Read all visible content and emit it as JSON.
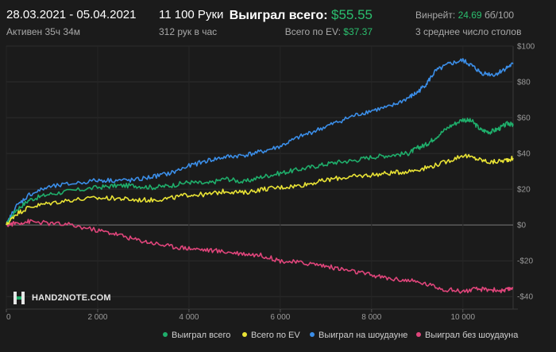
{
  "header": {
    "date_range": "28.03.2021 - 05.04.2021",
    "active": "Активен 35ч 34м",
    "hands": "11 100 Руки",
    "hands_per_hour": "312 рук в час",
    "won_label": "Выиграл всего:",
    "won_value": "$55.55",
    "ev_label": "Всего по EV:",
    "ev_value": "$37.37",
    "winrate_label": "Винрейт:",
    "winrate_value": "24.69",
    "winrate_unit": "бб/100",
    "tables": "3 среднее число столов"
  },
  "logo": {
    "text": "HAND2NOTE.COM"
  },
  "colors": {
    "background": "#1b1b1b",
    "won_total": "#1fae6b",
    "ev_total": "#e9e335",
    "showdown": "#3b8ee8",
    "non_showdown": "#e0457b",
    "accent": "#2bbf6e"
  },
  "chart_data": {
    "type": "line",
    "xlim": [
      0,
      11100
    ],
    "ylim": [
      -47,
      100
    ],
    "x_ticks": [
      0,
      2000,
      4000,
      6000,
      8000,
      10000
    ],
    "x_tick_labels": [
      "0",
      "2 000",
      "4 000",
      "6 000",
      "8 000",
      "10 000"
    ],
    "y_ticks": [
      100,
      80,
      60,
      40,
      20,
      0,
      -20,
      -40
    ],
    "y_tick_labels": [
      "$100",
      "$80",
      "$60",
      "$40",
      "$20",
      "$0",
      "-$20",
      "-$40"
    ],
    "grid": true,
    "legend_position": "bottom-right",
    "series": [
      {
        "name": "Выиграл всего",
        "color": "#1fae6b",
        "points": [
          [
            0,
            0
          ],
          [
            200,
            8
          ],
          [
            500,
            14
          ],
          [
            900,
            17
          ],
          [
            1400,
            19
          ],
          [
            2000,
            21
          ],
          [
            2400,
            22
          ],
          [
            2800,
            22
          ],
          [
            3200,
            21
          ],
          [
            3600,
            22
          ],
          [
            4000,
            24
          ],
          [
            4400,
            23
          ],
          [
            4800,
            26
          ],
          [
            5200,
            24
          ],
          [
            5600,
            27
          ],
          [
            6000,
            29
          ],
          [
            6400,
            31
          ],
          [
            6800,
            33
          ],
          [
            7200,
            35
          ],
          [
            7600,
            36
          ],
          [
            8000,
            38
          ],
          [
            8400,
            39
          ],
          [
            8800,
            40
          ],
          [
            9000,
            43
          ],
          [
            9200,
            45
          ],
          [
            9400,
            49
          ],
          [
            9700,
            55
          ],
          [
            10000,
            59
          ],
          [
            10200,
            58
          ],
          [
            10400,
            53
          ],
          [
            10600,
            52
          ],
          [
            10800,
            54
          ],
          [
            11000,
            57
          ],
          [
            11100,
            55.5
          ]
        ]
      },
      {
        "name": "Всего по EV",
        "color": "#e9e335",
        "points": [
          [
            0,
            0
          ],
          [
            200,
            6
          ],
          [
            500,
            10
          ],
          [
            900,
            12
          ],
          [
            1400,
            14
          ],
          [
            2000,
            15
          ],
          [
            2400,
            15
          ],
          [
            2800,
            14
          ],
          [
            3200,
            14
          ],
          [
            3600,
            15
          ],
          [
            4000,
            17
          ],
          [
            4400,
            17
          ],
          [
            4800,
            19
          ],
          [
            5200,
            18
          ],
          [
            5600,
            20
          ],
          [
            6000,
            21
          ],
          [
            6400,
            22
          ],
          [
            6800,
            24
          ],
          [
            7200,
            26
          ],
          [
            7600,
            27
          ],
          [
            8000,
            28
          ],
          [
            8400,
            29
          ],
          [
            8800,
            30
          ],
          [
            9200,
            32
          ],
          [
            9600,
            35
          ],
          [
            10000,
            39
          ],
          [
            10300,
            37
          ],
          [
            10600,
            35
          ],
          [
            10900,
            36
          ],
          [
            11100,
            37.4
          ]
        ]
      },
      {
        "name": "Выиграл на шоудауне",
        "color": "#3b8ee8",
        "points": [
          [
            0,
            0
          ],
          [
            200,
            10
          ],
          [
            500,
            17
          ],
          [
            900,
            21
          ],
          [
            1400,
            23
          ],
          [
            2000,
            25
          ],
          [
            2400,
            25
          ],
          [
            2800,
            25
          ],
          [
            3200,
            27
          ],
          [
            3600,
            29
          ],
          [
            4000,
            33
          ],
          [
            4400,
            36
          ],
          [
            4800,
            38
          ],
          [
            5200,
            39
          ],
          [
            5600,
            41
          ],
          [
            6000,
            44
          ],
          [
            6400,
            49
          ],
          [
            6800,
            53
          ],
          [
            7200,
            57
          ],
          [
            7600,
            61
          ],
          [
            8000,
            64
          ],
          [
            8400,
            66
          ],
          [
            8800,
            71
          ],
          [
            9000,
            74
          ],
          [
            9200,
            79
          ],
          [
            9400,
            86
          ],
          [
            9700,
            90
          ],
          [
            10000,
            92
          ],
          [
            10200,
            89
          ],
          [
            10400,
            85
          ],
          [
            10700,
            84
          ],
          [
            10900,
            87
          ],
          [
            11100,
            90
          ]
        ]
      },
      {
        "name": "Выиграл без шоудауна",
        "color": "#e0457b",
        "points": [
          [
            0,
            0
          ],
          [
            200,
            1
          ],
          [
            500,
            2
          ],
          [
            900,
            1
          ],
          [
            1400,
            0
          ],
          [
            2000,
            -3
          ],
          [
            2400,
            -5
          ],
          [
            2800,
            -8
          ],
          [
            3200,
            -10
          ],
          [
            3600,
            -12
          ],
          [
            4000,
            -13
          ],
          [
            4400,
            -14
          ],
          [
            4800,
            -15
          ],
          [
            5200,
            -16
          ],
          [
            5600,
            -17
          ],
          [
            6000,
            -20
          ],
          [
            6400,
            -21
          ],
          [
            6800,
            -22
          ],
          [
            7200,
            -24
          ],
          [
            7600,
            -26
          ],
          [
            8000,
            -28
          ],
          [
            8400,
            -30
          ],
          [
            8800,
            -31
          ],
          [
            9200,
            -33
          ],
          [
            9600,
            -36
          ],
          [
            10000,
            -37
          ],
          [
            10300,
            -36
          ],
          [
            10600,
            -36
          ],
          [
            10900,
            -37
          ],
          [
            11100,
            -35
          ]
        ]
      }
    ]
  }
}
